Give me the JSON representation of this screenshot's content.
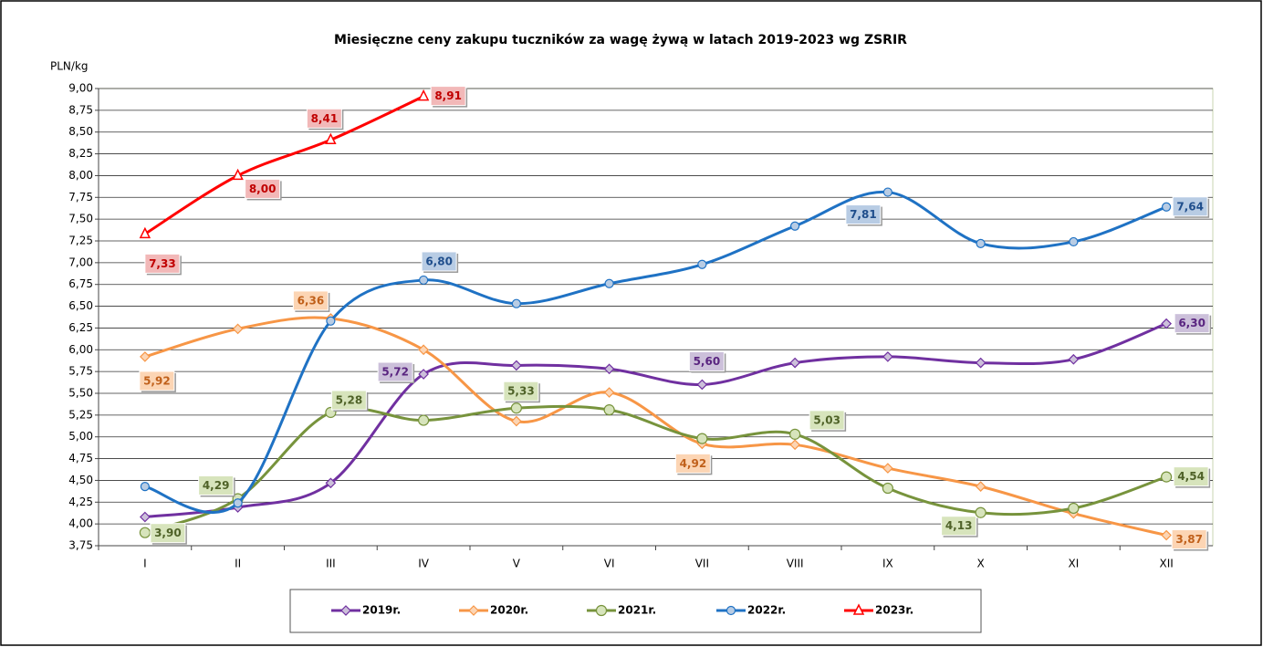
{
  "chart_data": {
    "type": "line",
    "title": "Miesięczne ceny zakupu tuczników za wagę żywą w latach 2019-2023 wg ZSRIR",
    "y_label": "PLN/kg",
    "categories": [
      "I",
      "II",
      "III",
      "IV",
      "V",
      "VI",
      "VII",
      "VIII",
      "IX",
      "X",
      "XI",
      "XII"
    ],
    "ylim": [
      3.75,
      9.0
    ],
    "yticks": [
      {
        "value": 3.75,
        "label": "3,75"
      },
      {
        "value": 4.0,
        "label": "4,00"
      },
      {
        "value": 4.25,
        "label": "4,25"
      },
      {
        "value": 4.5,
        "label": "4,50"
      },
      {
        "value": 4.75,
        "label": "4,75"
      },
      {
        "value": 5.0,
        "label": "5,00"
      },
      {
        "value": 5.25,
        "label": "5,25"
      },
      {
        "value": 5.5,
        "label": "5,50"
      },
      {
        "value": 5.75,
        "label": "5,75"
      },
      {
        "value": 6.0,
        "label": "6,00"
      },
      {
        "value": 6.25,
        "label": "6,25"
      },
      {
        "value": 6.5,
        "label": "6,50"
      },
      {
        "value": 6.75,
        "label": "6,75"
      },
      {
        "value": 7.0,
        "label": "7,00"
      },
      {
        "value": 7.25,
        "label": "7,25"
      },
      {
        "value": 7.5,
        "label": "7,50"
      },
      {
        "value": 7.75,
        "label": "7,75"
      },
      {
        "value": 8.0,
        "label": "8,00"
      },
      {
        "value": 8.25,
        "label": "8,25"
      },
      {
        "value": 8.5,
        "label": "8,50"
      },
      {
        "value": 8.75,
        "label": "8,75"
      },
      {
        "value": 9.0,
        "label": "9,00"
      }
    ],
    "grid": true,
    "legend": "bottom",
    "series": [
      {
        "name": "2019r.",
        "color": "#7030a0",
        "marker": "diamond",
        "values": [
          4.08,
          4.19,
          4.47,
          5.72,
          5.82,
          5.78,
          5.6,
          5.85,
          5.92,
          5.85,
          5.89,
          6.3
        ],
        "value_labels": [
          null,
          null,
          null,
          "5,72",
          null,
          null,
          "5,60",
          null,
          null,
          null,
          null,
          "6,30"
        ]
      },
      {
        "name": "2020r.",
        "color": "#f79646",
        "marker": "diamond",
        "values": [
          5.92,
          6.24,
          6.36,
          6.0,
          5.18,
          5.51,
          4.92,
          4.91,
          4.64,
          4.43,
          4.12,
          3.87
        ],
        "value_labels": [
          "5,92",
          null,
          "6,36",
          null,
          null,
          null,
          "4,92",
          null,
          null,
          null,
          null,
          "3,87"
        ]
      },
      {
        "name": "2021r.",
        "color": "#77933c",
        "marker": "circle",
        "values": [
          3.9,
          4.29,
          5.28,
          5.19,
          5.33,
          5.31,
          4.98,
          5.03,
          4.41,
          4.13,
          4.18,
          4.54
        ],
        "value_labels": [
          "3,90",
          "4,29",
          "5,28",
          null,
          "5,33",
          null,
          null,
          "5,03",
          null,
          "4,13",
          null,
          "4,54"
        ]
      },
      {
        "name": "2022r.",
        "color": "#1f72c4",
        "marker": "circle",
        "values": [
          4.43,
          4.24,
          6.33,
          6.8,
          6.53,
          6.76,
          6.98,
          7.42,
          7.81,
          7.22,
          7.24,
          7.64
        ],
        "value_labels": [
          null,
          null,
          null,
          "6,80",
          null,
          null,
          null,
          null,
          "7,81",
          null,
          null,
          "7,64"
        ]
      },
      {
        "name": "2023r.",
        "color": "#ff0000",
        "marker": "triangle",
        "values": [
          7.33,
          8.0,
          8.41,
          8.91,
          null,
          null,
          null,
          null,
          null,
          null,
          null,
          null
        ],
        "value_labels": [
          "7,33",
          "8,00",
          "8,41",
          "8,91",
          null,
          null,
          null,
          null,
          null,
          null,
          null,
          null
        ]
      }
    ]
  }
}
